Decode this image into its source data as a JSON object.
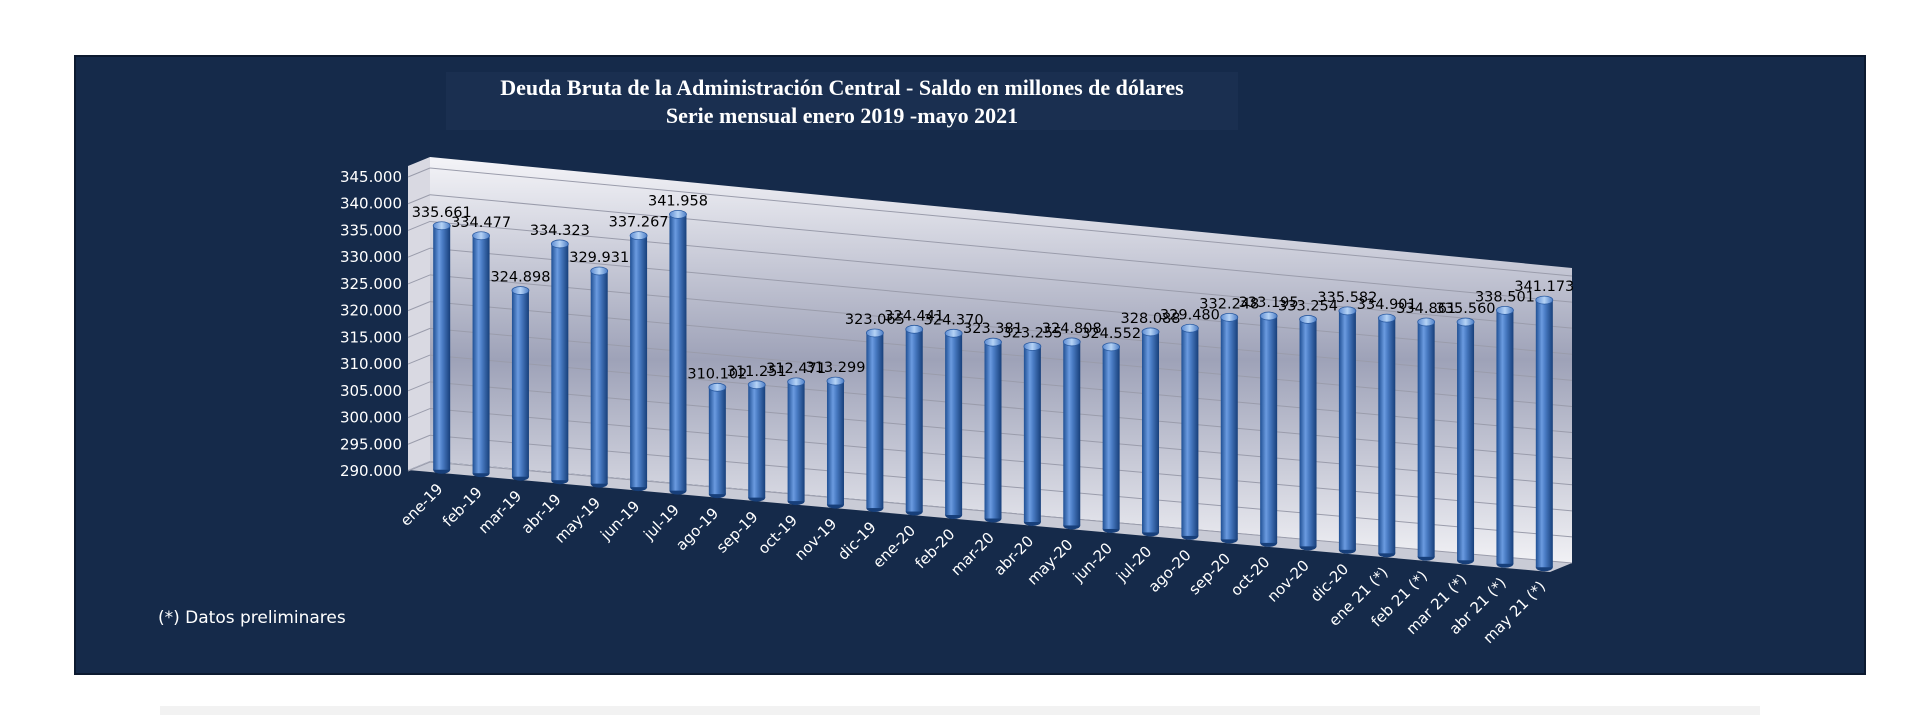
{
  "title_line1": "Deuda Bruta de la Administración Central - Saldo en millones de dólares",
  "title_line2": "Serie mensual enero 2019 -mayo 2021",
  "footnote": "(*) Datos preliminares",
  "colors": {
    "panel": "#152a4a",
    "bar": "#4a7cc4",
    "bar_dark": "#1f4f93",
    "bar_light": "#9ec3ef",
    "wall": "#dcdce6"
  },
  "chart_data": {
    "type": "bar",
    "title": "Deuda Bruta de la Administración Central - Saldo en millones de dólares",
    "subtitle": "Serie mensual enero 2019 -mayo 2021",
    "xlabel": "",
    "ylabel": "",
    "ylim": [
      290000,
      345000
    ],
    "yticks": [
      "290.000",
      "295.000",
      "300.000",
      "305.000",
      "310.000",
      "315.000",
      "320.000",
      "325.000",
      "330.000",
      "335.000",
      "340.000",
      "345.000"
    ],
    "grid": true,
    "style": "3d-cylinder",
    "categories": [
      "ene-19",
      "feb-19",
      "mar-19",
      "abr-19",
      "may-19",
      "jun-19",
      "jul-19",
      "ago-19",
      "sep-19",
      "oct-19",
      "nov-19",
      "dic-19",
      "ene-20",
      "feb-20",
      "mar-20",
      "abr-20",
      "may-20",
      "jun-20",
      "jul-20",
      "ago-20",
      "sep-20",
      "oct-20",
      "nov-20",
      "dic-20",
      "ene 21 (*)",
      "feb 21 (*)",
      "mar 21 (*)",
      "abr 21 (*)",
      "may 21 (*)"
    ],
    "values": [
      335661,
      334477,
      324898,
      334323,
      329931,
      337267,
      341958,
      310102,
      311251,
      312471,
      313299,
      323065,
      324441,
      324370,
      323381,
      323255,
      324808,
      324552,
      328088,
      329480,
      332248,
      333195,
      333254,
      335582,
      334901,
      334861,
      335560,
      338501,
      341173
    ],
    "labels": [
      "335.661",
      "334.477",
      "324.898",
      "334.323",
      "329.931",
      "337.267",
      "341.958",
      "310.102",
      "311.251",
      "312.471",
      "313.299",
      "323.065",
      "324.441",
      "324.370",
      "323.381",
      "323.255",
      "324.808",
      "324.552",
      "328.088",
      "329.480",
      "332.248",
      "333.195",
      "333.254",
      "335.582",
      "334.901",
      "334.861",
      "335.560",
      "338.501",
      "341.173"
    ]
  }
}
